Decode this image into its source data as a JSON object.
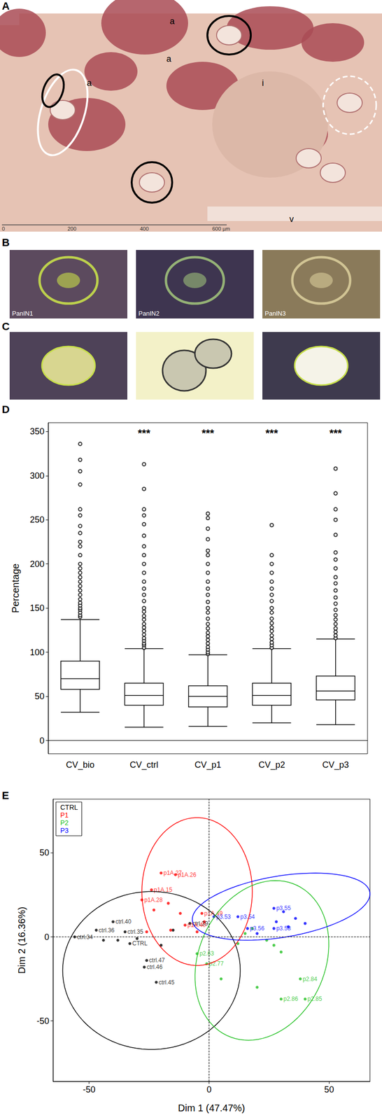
{
  "image_panels": {
    "A": {
      "panel_label": "A",
      "region_labels": [
        "a",
        "a",
        "a",
        "i",
        "v"
      ],
      "scale_bar": [
        "0",
        "200",
        "400",
        "600 µm"
      ]
    },
    "B": {
      "panel_label": "B",
      "captions": [
        "PanIN1",
        "PanIN2",
        "PanIN3"
      ]
    },
    "C": {
      "panel_label": "C"
    }
  },
  "chart_data": [
    {
      "panel_label": "D",
      "type": "boxplot",
      "categories": [
        "CV_bio",
        "CV_ctrl",
        "CV_p1",
        "CV_p2",
        "CV_p3"
      ],
      "values": [
        [
          32,
          58,
          70,
          90,
          137
        ],
        [
          15,
          40,
          51,
          65,
          104
        ],
        [
          16,
          38,
          50,
          62,
          97
        ],
        [
          20,
          40,
          51,
          65,
          104
        ],
        [
          18,
          46,
          56,
          73,
          115
        ]
      ],
      "outliers": [
        [
          140,
          142,
          145,
          148,
          150,
          153,
          156,
          160,
          165,
          170,
          175,
          180,
          185,
          190,
          195,
          200,
          210,
          220,
          225,
          235,
          243,
          255,
          262,
          290,
          305,
          318,
          336
        ],
        [
          105,
          108,
          110,
          113,
          116,
          120,
          124,
          128,
          132,
          137,
          141,
          146,
          150,
          158,
          165,
          172,
          180,
          190,
          200,
          210,
          220,
          232,
          245,
          255,
          262,
          285,
          313
        ],
        [
          98,
          100,
          103,
          106,
          110,
          114,
          118,
          122,
          127,
          132,
          138,
          145,
          150,
          157,
          165,
          172,
          180,
          190,
          200,
          210,
          215,
          228,
          240,
          252,
          257
        ],
        [
          105,
          108,
          111,
          115,
          119,
          124,
          128,
          133,
          138,
          145,
          150,
          158,
          165,
          172,
          180,
          190,
          200,
          210,
          244
        ],
        [
          116,
          119,
          123,
          127,
          132,
          137,
          142,
          148,
          155,
          162,
          170,
          178,
          185,
          195,
          205,
          213,
          233,
          250,
          262,
          280,
          308
        ]
      ],
      "annotations": [
        null,
        "***",
        "***",
        "***",
        "***"
      ],
      "ylabel": "Percentage",
      "ylim": [
        -15,
        360
      ],
      "yticks": [
        0,
        50,
        100,
        150,
        200,
        250,
        300,
        350
      ]
    },
    {
      "panel_label": "E",
      "type": "scatter",
      "xlabel": "Dim 1 (47.47%)",
      "ylabel": "Dim 2 (16.36%)",
      "xlim": [
        -65,
        67
      ],
      "ylim": [
        -86,
        82
      ],
      "xticks": [
        -50,
        0,
        50
      ],
      "yticks": [
        -50,
        0,
        50
      ],
      "reference_lines": {
        "x": [
          0
        ],
        "y": [
          0
        ]
      },
      "legend": "top-left",
      "series": [
        {
          "name": "CTRL",
          "color": "#000000",
          "x": [
            -56,
            -47,
            -40,
            -35,
            -30,
            -38,
            -26,
            -27,
            -22,
            -15,
            -8,
            -20,
            -44,
            -33
          ],
          "y": [
            0,
            4,
            9,
            3,
            -1,
            -2,
            -14,
            -18,
            -27,
            4,
            8,
            -5,
            -2,
            -4
          ],
          "labels": [
            "ctrl.34",
            "ctrl.36",
            "ctrl.40",
            "ctrl.35",
            null,
            null,
            "ctrl.47",
            "ctrl.46",
            "ctrl.45",
            null,
            "ctrl.39",
            null,
            null,
            "CTRL"
          ],
          "ellipse": {
            "center": [
              -24,
              -20
            ],
            "radii": [
              37,
              47
            ],
            "angle": 0
          }
        },
        {
          "name": "P1",
          "color": "#ff0000",
          "x": [
            -20,
            -14,
            -24,
            -28,
            -23,
            -17,
            -12,
            -3,
            -10,
            -16,
            -5,
            -26,
            -2
          ],
          "y": [
            38,
            37,
            28,
            22,
            16,
            20,
            14,
            14,
            7,
            4,
            3,
            3,
            9
          ],
          "labels": [
            "p1A.27",
            "p1A.26",
            "p1A.15",
            "p1A.28",
            null,
            null,
            null,
            "p1A.49",
            "p1A.40",
            null,
            null,
            null,
            null
          ],
          "ellipse": {
            "center": [
              -5,
              27
            ],
            "radii": [
              23,
              44
            ],
            "angle": 0
          }
        },
        {
          "name": "P2",
          "color": "#22c022",
          "x": [
            -5,
            -1,
            5,
            12,
            18,
            24,
            30,
            38,
            30,
            40,
            20,
            15,
            27
          ],
          "y": [
            -10,
            -16,
            -25,
            -4,
            5,
            -2,
            -9,
            -25,
            -37,
            -37,
            -30,
            2,
            -5
          ],
          "labels": [
            "p2.63",
            "p2.77",
            null,
            null,
            null,
            null,
            null,
            "p2.84",
            "p2.86",
            "p2.85",
            null,
            null,
            null
          ],
          "ellipse": {
            "center": [
              22,
              -14
            ],
            "radii": [
              27,
              48
            ],
            "angle": -10
          }
        },
        {
          "name": "P3",
          "color": "#0000ff",
          "x": [
            2,
            12,
            27,
            28,
            33,
            27,
            20,
            36,
            40,
            16,
            31
          ],
          "y": [
            12,
            12,
            17,
            9,
            6,
            5,
            2,
            11,
            8,
            5,
            15
          ],
          "labels": [
            "p3.53",
            "p3.54",
            "p3.55",
            null,
            null,
            "p3.58",
            null,
            null,
            null,
            "p3.56",
            null
          ],
          "ellipse": {
            "center": [
              30,
              18
            ],
            "radii": [
              38,
              18
            ],
            "angle": 15
          }
        }
      ]
    }
  ]
}
